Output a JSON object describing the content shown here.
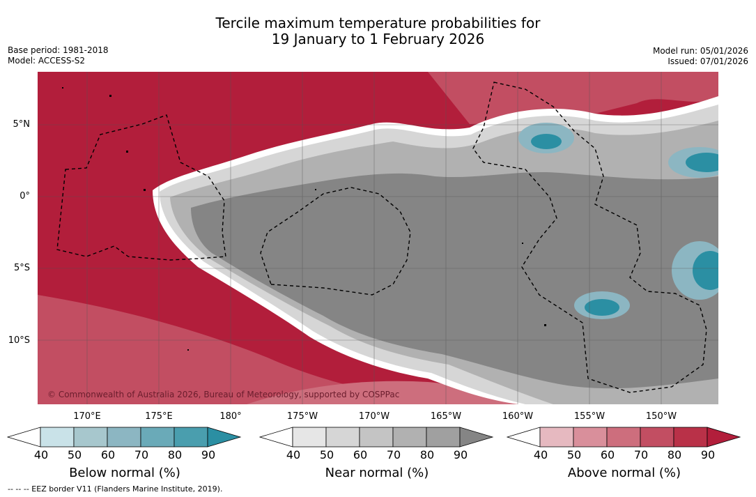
{
  "title_lines": [
    "Tercile maximum temperature probabilities for",
    "19 January to 1 February 2026"
  ],
  "base_period": "Base period: 1981-2018",
  "model": "Model: ACCESS-S2",
  "model_run": "Model run: 05/01/2026",
  "issued": "Issued: 07/01/2026",
  "lat_labels": [
    "5°N",
    "0°",
    "5°S",
    "10°S"
  ],
  "lon_labels": [
    "170°E",
    "175°E",
    "180°",
    "175°W",
    "170°W",
    "165°W",
    "160°W",
    "155°W",
    "150°W"
  ],
  "copyright": "© Commonwealth of Australia 2026, Bureau of Meteorology, supported by COSPPac",
  "footnote": "-- -- -- EEZ border V11 (Flanders Marine Institute, 2019).",
  "colorbars": [
    {
      "title": "Below normal (%)",
      "ticks": [
        "40",
        "50",
        "60",
        "70",
        "80",
        "90"
      ],
      "colors": [
        "#ffffff",
        "#c9e2e8",
        "#a7c7cd",
        "#8cb6c2",
        "#6aaab8",
        "#4a9eae",
        "#2b8fa3"
      ]
    },
    {
      "title": "Near normal (%)",
      "ticks": [
        "40",
        "50",
        "60",
        "70",
        "80",
        "90"
      ],
      "colors": [
        "#ffffff",
        "#e6e6e6",
        "#d6d6d6",
        "#c4c4c4",
        "#b1b1b1",
        "#a0a0a0",
        "#858585"
      ]
    },
    {
      "title": "Above normal (%)",
      "ticks": [
        "40",
        "50",
        "60",
        "70",
        "80",
        "90"
      ],
      "colors": [
        "#ffffff",
        "#e6b9c0",
        "#d98f9b",
        "#cd6e7d",
        "#c24e62",
        "#b93148",
        "#b21e3b"
      ]
    }
  ]
}
